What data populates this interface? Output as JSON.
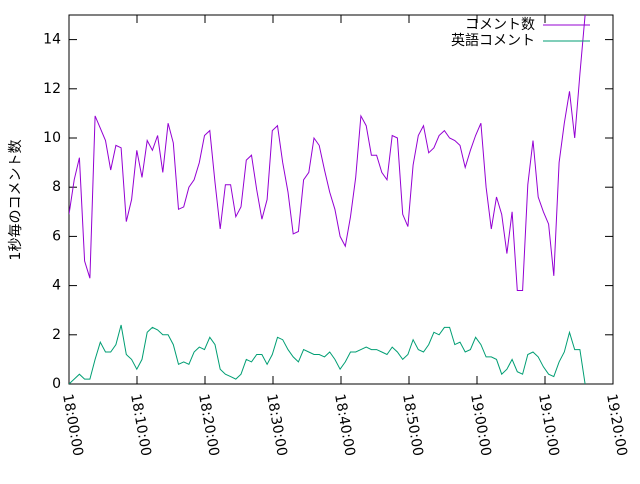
{
  "chart_data": {
    "type": "line",
    "y_label": "1秒毎のコメント数",
    "legend": "top-right",
    "x": [
      "18:00:00",
      "18:00:46",
      "18:01:32",
      "18:02:18",
      "18:03:04",
      "18:03:50",
      "18:04:36",
      "18:05:22",
      "18:06:08",
      "18:06:54",
      "18:07:40",
      "18:08:26",
      "18:09:12",
      "18:09:58",
      "18:10:44",
      "18:11:30",
      "18:12:16",
      "18:13:02",
      "18:13:48",
      "18:14:34",
      "18:15:20",
      "18:16:06",
      "18:16:52",
      "18:17:38",
      "18:18:24",
      "18:19:10",
      "18:19:56",
      "18:20:42",
      "18:21:28",
      "18:22:14",
      "18:23:00",
      "18:23:46",
      "18:24:32",
      "18:25:18",
      "18:26:04",
      "18:26:50",
      "18:27:36",
      "18:28:22",
      "18:29:08",
      "18:29:54",
      "18:30:40",
      "18:31:26",
      "18:32:12",
      "18:32:58",
      "18:33:44",
      "18:34:30",
      "18:35:16",
      "18:36:02",
      "18:36:48",
      "18:37:34",
      "18:38:20",
      "18:39:06",
      "18:39:52",
      "18:40:38",
      "18:41:24",
      "18:42:10",
      "18:42:56",
      "18:43:42",
      "18:44:28",
      "18:45:14",
      "18:46:00",
      "18:46:46",
      "18:47:32",
      "18:48:18",
      "18:49:04",
      "18:49:50",
      "18:50:36",
      "18:51:22",
      "18:52:08",
      "18:52:54",
      "18:53:40",
      "18:54:26",
      "18:55:12",
      "18:55:58",
      "18:56:44",
      "18:57:30",
      "18:58:16",
      "18:59:02",
      "18:59:48",
      "19:00:34",
      "19:01:20",
      "19:02:06",
      "19:02:52",
      "19:03:38",
      "19:04:24",
      "19:05:10",
      "19:05:56",
      "19:06:42",
      "19:07:28",
      "19:08:14",
      "19:09:00",
      "19:09:46",
      "19:10:32",
      "19:11:18",
      "19:12:04",
      "19:12:50",
      "19:13:36",
      "19:14:22",
      "19:15:08",
      "19:15:54"
    ],
    "series": [
      {
        "name": "コメント数",
        "color": "#9400d3",
        "values": [
          6.9,
          8.3,
          9.2,
          5.0,
          4.3,
          10.9,
          10.4,
          9.9,
          8.7,
          9.7,
          9.6,
          6.6,
          7.5,
          9.5,
          8.4,
          9.9,
          9.5,
          10.1,
          8.6,
          10.6,
          9.8,
          7.1,
          7.2,
          8.0,
          8.3,
          9.0,
          10.1,
          10.3,
          8.2,
          6.3,
          8.1,
          8.1,
          6.8,
          7.2,
          9.1,
          9.3,
          7.9,
          6.7,
          7.5,
          10.3,
          10.5,
          9.0,
          7.8,
          6.1,
          6.2,
          8.3,
          8.6,
          10.0,
          9.7,
          8.7,
          7.8,
          7.1,
          6.0,
          5.6,
          6.8,
          8.4,
          10.9,
          10.5,
          9.3,
          9.3,
          8.6,
          8.3,
          10.1,
          10.0,
          6.9,
          6.4,
          8.9,
          10.1,
          10.5,
          9.4,
          9.6,
          10.1,
          10.3,
          10.0,
          9.9,
          9.7,
          8.8,
          9.5,
          10.1,
          10.6,
          8.0,
          6.3,
          7.6,
          6.9,
          5.3,
          7.0,
          3.8,
          3.8,
          8.1,
          9.9,
          7.6,
          7.0,
          6.5,
          4.4,
          9.0,
          10.6,
          11.9,
          10.0,
          12.6,
          15
        ]
      },
      {
        "name": "英語コメント",
        "color": "#009e73",
        "values": [
          0.0,
          0.2,
          0.4,
          0.2,
          0.2,
          1.0,
          1.7,
          1.3,
          1.3,
          1.6,
          2.4,
          1.2,
          1.0,
          0.6,
          1.0,
          2.1,
          2.3,
          2.2,
          2.0,
          2.0,
          1.6,
          0.8,
          0.9,
          0.8,
          1.3,
          1.5,
          1.4,
          1.9,
          1.6,
          0.6,
          0.4,
          0.3,
          0.2,
          0.4,
          1.0,
          0.9,
          1.2,
          1.2,
          0.8,
          1.2,
          1.9,
          1.8,
          1.4,
          1.1,
          0.9,
          1.4,
          1.3,
          1.2,
          1.2,
          1.1,
          1.3,
          1.0,
          0.6,
          0.9,
          1.3,
          1.3,
          1.4,
          1.5,
          1.4,
          1.4,
          1.3,
          1.2,
          1.5,
          1.3,
          1.0,
          1.2,
          1.8,
          1.4,
          1.3,
          1.6,
          2.1,
          2.0,
          2.3,
          2.3,
          1.6,
          1.7,
          1.3,
          1.4,
          1.9,
          1.6,
          1.1,
          1.1,
          1.0,
          0.4,
          0.6,
          1.0,
          0.5,
          0.4,
          1.2,
          1.3,
          1.1,
          0.7,
          0.4,
          0.3,
          0.9,
          1.3,
          2.1,
          1.4,
          1.4,
          0.0
        ]
      }
    ],
    "xlim": [
      "18:00:00",
      "19:20:00"
    ],
    "xticks": [
      "18:00:00",
      "18:10:00",
      "18:20:00",
      "18:30:00",
      "18:40:00",
      "18:50:00",
      "19:00:00",
      "19:10:00",
      "19:20:00"
    ],
    "ylim": [
      0,
      15
    ],
    "yticks": [
      0,
      2,
      4,
      6,
      8,
      10,
      12,
      14
    ]
  }
}
